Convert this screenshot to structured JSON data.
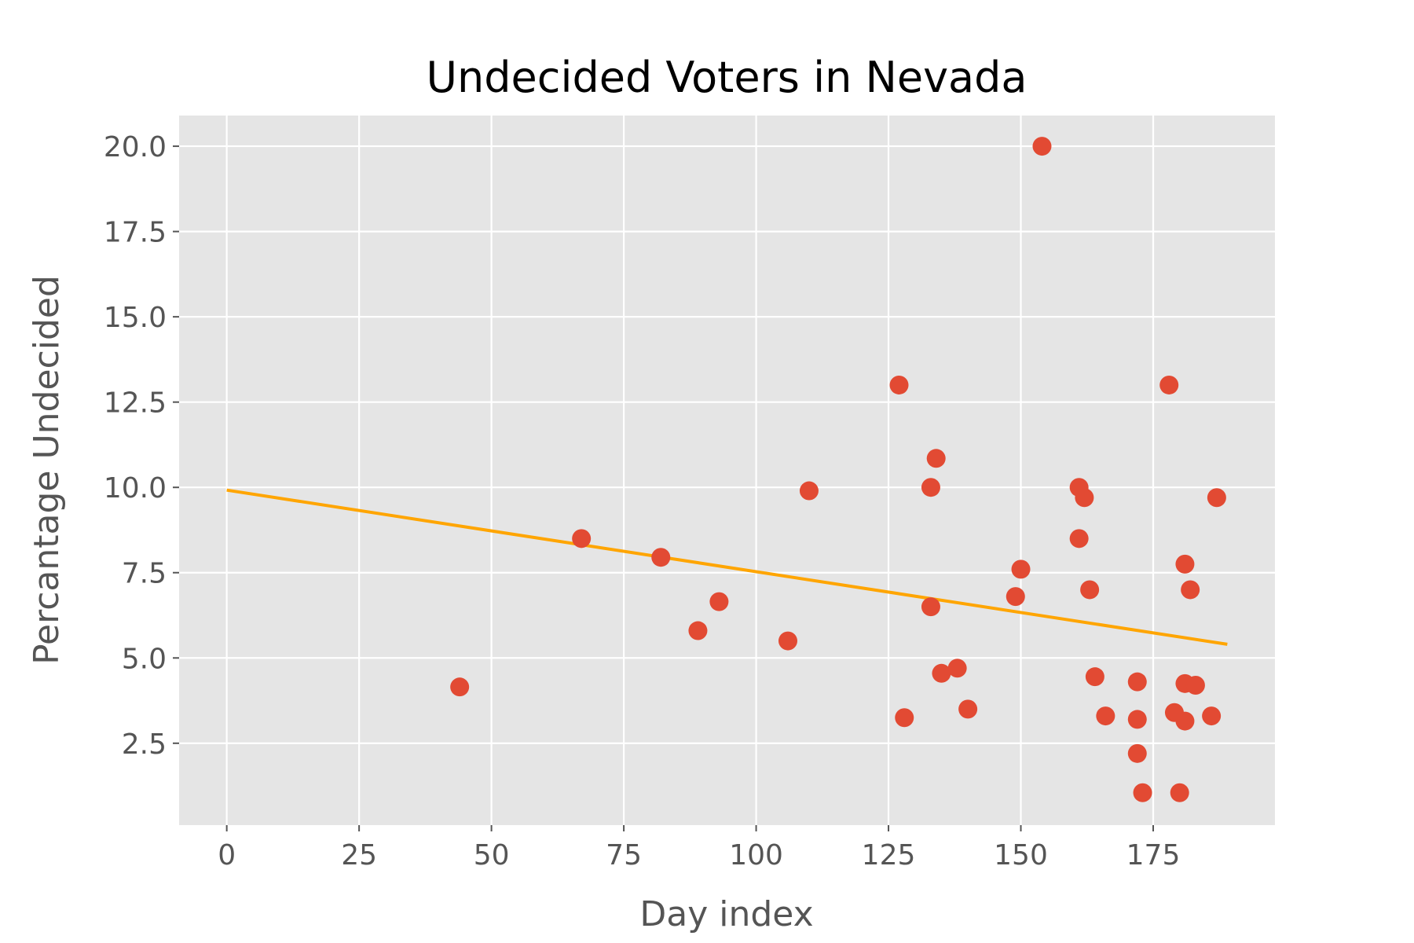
{
  "chart_data": {
    "type": "scatter",
    "title": "Undecided Voters in Nevada",
    "xlabel": "Day index",
    "ylabel": "Percantage Undecided",
    "xlim": [
      -9,
      198
    ],
    "ylim": [
      0.1,
      20.9
    ],
    "xticks": [
      0,
      25,
      50,
      75,
      100,
      125,
      150,
      175
    ],
    "yticks": [
      2.5,
      5.0,
      7.5,
      10.0,
      12.5,
      15.0,
      17.5,
      20.0
    ],
    "ytick_labels": [
      "2.5",
      "5.0",
      "7.5",
      "10.0",
      "12.5",
      "15.0",
      "17.5",
      "20.0"
    ],
    "grid": true,
    "colors": {
      "background": "#e5e5e5",
      "points": "#e24a33",
      "trend": "#ffa500"
    },
    "series": [
      {
        "name": "polls",
        "kind": "scatter",
        "x": [
          44,
          67,
          82,
          89,
          93,
          106,
          110,
          127,
          128,
          133,
          133,
          134,
          135,
          138,
          140,
          149,
          150,
          154,
          161,
          161,
          162,
          163,
          164,
          166,
          172,
          172,
          172,
          173,
          178,
          179,
          180,
          181,
          181,
          181,
          182,
          183,
          186,
          187
        ],
        "y": [
          4.15,
          8.5,
          7.95,
          5.8,
          6.65,
          5.5,
          9.9,
          13.0,
          3.25,
          10.0,
          6.5,
          10.85,
          4.55,
          4.7,
          3.5,
          6.8,
          7.6,
          20.0,
          10.0,
          8.5,
          9.7,
          7.0,
          4.45,
          3.3,
          4.3,
          3.2,
          2.2,
          1.05,
          13.0,
          3.4,
          1.05,
          4.25,
          3.15,
          7.75,
          7.0,
          4.2,
          3.3,
          9.7
        ]
      },
      {
        "name": "trend",
        "kind": "line",
        "x": [
          0,
          189
        ],
        "y": [
          9.92,
          5.4
        ]
      }
    ]
  }
}
